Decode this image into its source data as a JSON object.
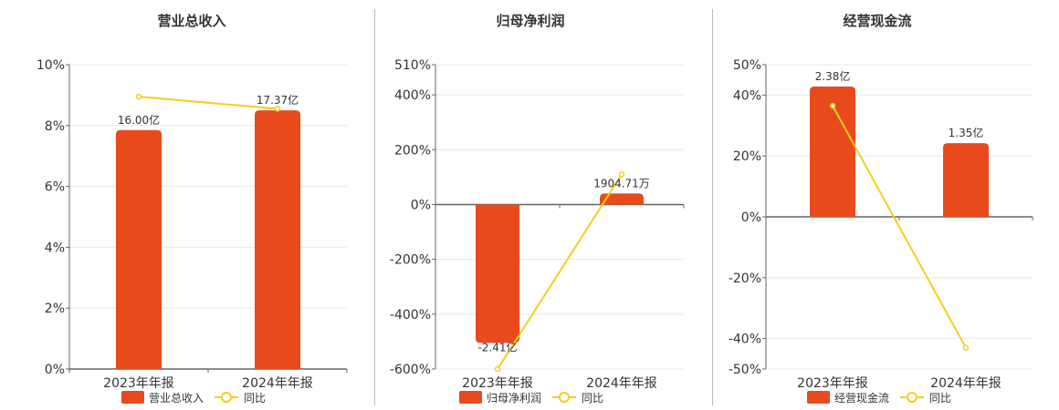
{
  "colors": {
    "bar": "#e84a1b",
    "line": "#f2cf1a",
    "grid": "#e8e8ee",
    "axis": "#666666"
  },
  "chart_data": [
    {
      "type": "bar",
      "title": "营业总收入",
      "categories": [
        "2023年年报",
        "2024年年报"
      ],
      "ylim": [
        0,
        10
      ],
      "yticks": [
        0,
        2,
        4,
        6,
        8,
        10
      ],
      "ytick_labels": [
        "0%",
        "2%",
        "4%",
        "6%",
        "8%",
        "10%"
      ],
      "series": [
        {
          "name": "营业总收入",
          "kind": "bar",
          "values": [
            7.85,
            8.5
          ],
          "labels": [
            "16.00亿",
            "17.37亿"
          ]
        },
        {
          "name": "同比",
          "kind": "line",
          "values": [
            8.95,
            8.55
          ]
        }
      ],
      "legend": [
        "营业总收入",
        "同比"
      ],
      "legend_position": "bottom"
    },
    {
      "type": "bar",
      "title": "归母净利润",
      "categories": [
        "2023年年报",
        "2024年年报"
      ],
      "ylim": [
        -600,
        510
      ],
      "yticks": [
        -600,
        -400,
        -200,
        0,
        200,
        400,
        510
      ],
      "ytick_labels": [
        "-600%",
        "-400%",
        "-200%",
        "0%",
        "200%",
        "400%",
        "510%"
      ],
      "series": [
        {
          "name": "归母净利润",
          "kind": "bar",
          "values": [
            -505,
            40
          ],
          "labels": [
            "-2.41亿",
            "1904.71万"
          ]
        },
        {
          "name": "同比",
          "kind": "line",
          "values": [
            -600,
            110
          ]
        }
      ],
      "legend": [
        "归母净利润",
        "同比"
      ],
      "legend_position": "bottom"
    },
    {
      "type": "bar",
      "title": "经营现金流",
      "categories": [
        "2023年年报",
        "2024年年报"
      ],
      "ylim": [
        -50,
        50
      ],
      "yticks": [
        -50,
        -40,
        -20,
        0,
        20,
        40,
        50
      ],
      "ytick_labels": [
        "-50%",
        "-40%",
        "-20%",
        "0%",
        "20%",
        "40%",
        "50%"
      ],
      "series": [
        {
          "name": "经营现金流",
          "kind": "bar",
          "values": [
            42.8,
            24.2
          ],
          "labels": [
            "2.38亿",
            "1.35亿"
          ]
        },
        {
          "name": "同比",
          "kind": "line",
          "values": [
            36.5,
            -43
          ]
        }
      ],
      "legend": [
        "经营现金流",
        "同比"
      ],
      "legend_position": "bottom"
    }
  ]
}
